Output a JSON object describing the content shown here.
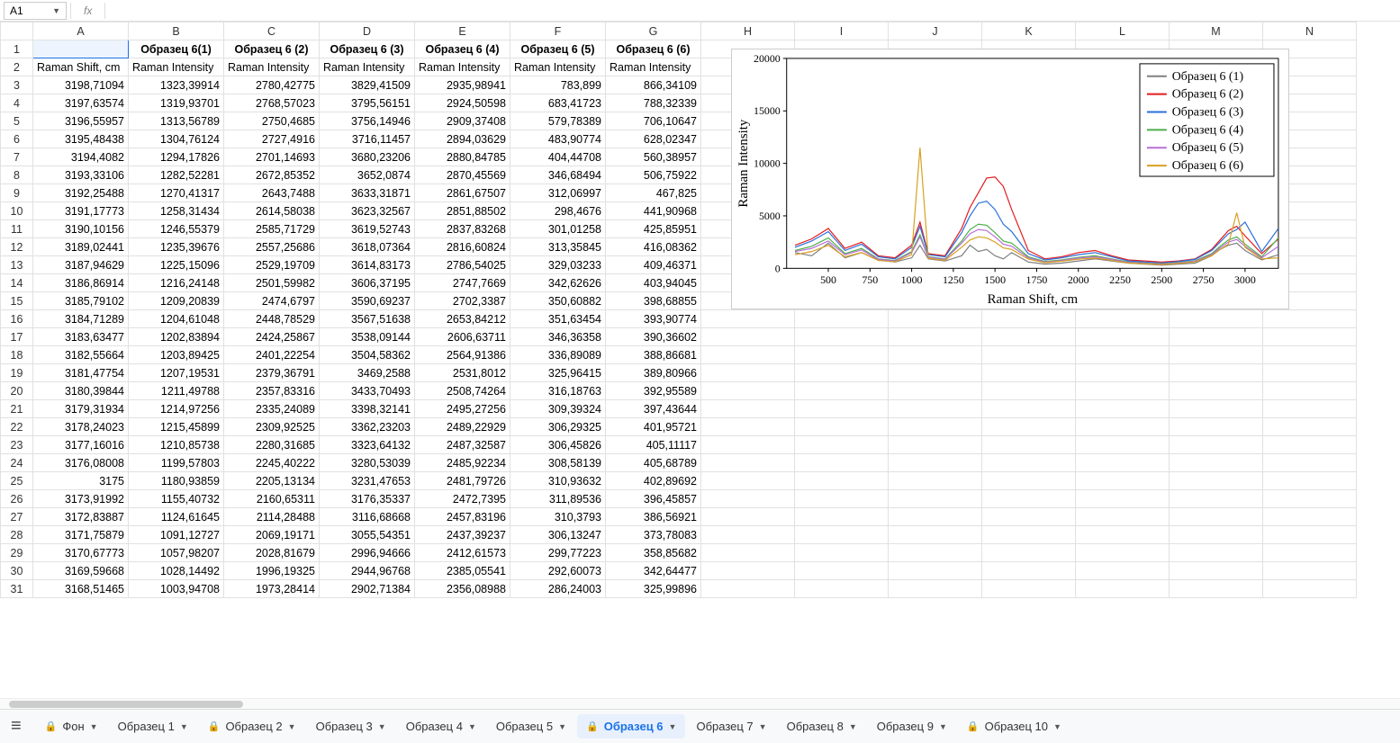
{
  "namebox": "A1",
  "fx_label": "fx",
  "columns_letters": [
    "A",
    "B",
    "C",
    "D",
    "E",
    "F",
    "G",
    "H",
    "I",
    "J",
    "K",
    "L",
    "M",
    "N"
  ],
  "header_row1": [
    "",
    "Образец 6(1)",
    "Образец 6 (2)",
    "Образец 6 (3)",
    "Образец 6 (4)",
    "Образец 6 (5)",
    "Образец 6 (6)"
  ],
  "header_row2": [
    "Raman Shift, cm",
    "Raman Intensity",
    "Raman Intensity",
    "Raman Intensity",
    "Raman Intensity",
    "Raman Intensity",
    "Raman Intensity"
  ],
  "rows": [
    [
      "3198,71094",
      "1323,39914",
      "2780,42775",
      "3829,41509",
      "2935,98941",
      "783,899",
      "866,34109"
    ],
    [
      "3197,63574",
      "1319,93701",
      "2768,57023",
      "3795,56151",
      "2924,50598",
      "683,41723",
      "788,32339"
    ],
    [
      "3196,55957",
      "1313,56789",
      "2750,4685",
      "3756,14946",
      "2909,37408",
      "579,78389",
      "706,10647"
    ],
    [
      "3195,48438",
      "1304,76124",
      "2727,4916",
      "3716,11457",
      "2894,03629",
      "483,90774",
      "628,02347"
    ],
    [
      "3194,4082",
      "1294,17826",
      "2701,14693",
      "3680,23206",
      "2880,84785",
      "404,44708",
      "560,38957"
    ],
    [
      "3193,33106",
      "1282,52281",
      "2672,85352",
      "3652,0874",
      "2870,45569",
      "346,68494",
      "506,75922"
    ],
    [
      "3192,25488",
      "1270,41317",
      "2643,7488",
      "3633,31871",
      "2861,67507",
      "312,06997",
      "467,825"
    ],
    [
      "3191,17773",
      "1258,31434",
      "2614,58038",
      "3623,32567",
      "2851,88502",
      "298,4676",
      "441,90968"
    ],
    [
      "3190,10156",
      "1246,55379",
      "2585,71729",
      "3619,52743",
      "2837,83268",
      "301,01258",
      "425,85951"
    ],
    [
      "3189,02441",
      "1235,39676",
      "2557,25686",
      "3618,07364",
      "2816,60824",
      "313,35845",
      "416,08362"
    ],
    [
      "3187,94629",
      "1225,15096",
      "2529,19709",
      "3614,83173",
      "2786,54025",
      "329,03233",
      "409,46371"
    ],
    [
      "3186,86914",
      "1216,24148",
      "2501,59982",
      "3606,37195",
      "2747,7669",
      "342,62626",
      "403,94045"
    ],
    [
      "3185,79102",
      "1209,20839",
      "2474,6797",
      "3590,69237",
      "2702,3387",
      "350,60882",
      "398,68855"
    ],
    [
      "3184,71289",
      "1204,61048",
      "2448,78529",
      "3567,51638",
      "2653,84212",
      "351,63454",
      "393,90774"
    ],
    [
      "3183,63477",
      "1202,83894",
      "2424,25867",
      "3538,09144",
      "2606,63711",
      "346,36358",
      "390,36602"
    ],
    [
      "3182,55664",
      "1203,89425",
      "2401,22254",
      "3504,58362",
      "2564,91386",
      "336,89089",
      "388,86681"
    ],
    [
      "3181,47754",
      "1207,19531",
      "2379,36791",
      "3469,2588",
      "2531,8012",
      "325,96415",
      "389,80966"
    ],
    [
      "3180,39844",
      "1211,49788",
      "2357,83316",
      "3433,70493",
      "2508,74264",
      "316,18763",
      "392,95589"
    ],
    [
      "3179,31934",
      "1214,97256",
      "2335,24089",
      "3398,32141",
      "2495,27256",
      "309,39324",
      "397,43644"
    ],
    [
      "3178,24023",
      "1215,45899",
      "2309,92525",
      "3362,23203",
      "2489,22929",
      "306,29325",
      "401,95721"
    ],
    [
      "3177,16016",
      "1210,85738",
      "2280,31685",
      "3323,64132",
      "2487,32587",
      "306,45826",
      "405,11117"
    ],
    [
      "3176,08008",
      "1199,57803",
      "2245,40222",
      "3280,53039",
      "2485,92234",
      "308,58139",
      "405,68789"
    ],
    [
      "3175",
      "1180,93859",
      "2205,13134",
      "3231,47653",
      "2481,79726",
      "310,93632",
      "402,89692"
    ],
    [
      "3173,91992",
      "1155,40732",
      "2160,65311",
      "3176,35337",
      "2472,7395",
      "311,89536",
      "396,45857"
    ],
    [
      "3172,83887",
      "1124,61645",
      "2114,28488",
      "3116,68668",
      "2457,83196",
      "310,3793",
      "386,56921"
    ],
    [
      "3171,75879",
      "1091,12727",
      "2069,19171",
      "3055,54351",
      "2437,39237",
      "306,13247",
      "373,78083"
    ],
    [
      "3170,67773",
      "1057,98207",
      "2028,81679",
      "2996,94666",
      "2412,61573",
      "299,77223",
      "358,85682"
    ],
    [
      "3169,59668",
      "1028,14492",
      "1996,19325",
      "2944,96768",
      "2385,05541",
      "292,60073",
      "342,64477"
    ],
    [
      "3168,51465",
      "1003,94708",
      "1973,28414",
      "2902,71384",
      "2356,08988",
      "286,24003",
      "325,99896"
    ]
  ],
  "chart": {
    "type": "line",
    "title": "",
    "xlabel": "Raman Shift, cm",
    "ylabel": "Raman Intensity",
    "xlabel_fontsize": 15,
    "ylabel_fontsize": 15,
    "tick_fontsize": 12,
    "xlim": [
      250,
      3200
    ],
    "ylim": [
      0,
      20000
    ],
    "xticks": [
      500,
      750,
      1000,
      1250,
      1500,
      1750,
      2000,
      2250,
      2500,
      2750,
      3000
    ],
    "yticks": [
      0,
      5000,
      10000,
      15000,
      20000
    ],
    "background_color": "#ffffff",
    "axis_color": "#000000",
    "grid": false,
    "legend_position": "top-right-inside",
    "legend_border_color": "#000000",
    "legend_fontsize": 14,
    "series": [
      {
        "label": "Образец 6 (1)",
        "color": "#808080",
        "width": 1.2
      },
      {
        "label": "Образец 6 (2)",
        "color": "#e41a1c",
        "width": 1.2
      },
      {
        "label": "Образец 6 (3)",
        "color": "#2a6fdb",
        "width": 1.2
      },
      {
        "label": "Образец 6 (4)",
        "color": "#4daf4a",
        "width": 1.2
      },
      {
        "label": "Образец 6 (5)",
        "color": "#b86fd6",
        "width": 1.2
      },
      {
        "label": "Образец 6 (6)",
        "color": "#d8a020",
        "width": 1.2
      }
    ],
    "x_sample": [
      300,
      400,
      500,
      600,
      700,
      800,
      900,
      1000,
      1050,
      1100,
      1200,
      1300,
      1350,
      1400,
      1450,
      1500,
      1550,
      1600,
      1700,
      1800,
      1900,
      2000,
      2100,
      2200,
      2300,
      2400,
      2500,
      2600,
      2700,
      2800,
      2850,
      2900,
      2950,
      3000,
      3100,
      3200
    ],
    "y_sample": {
      "s1": [
        1500,
        1200,
        2400,
        1000,
        1500,
        800,
        600,
        1000,
        2200,
        900,
        700,
        1200,
        2200,
        1600,
        1800,
        1200,
        900,
        1500,
        600,
        400,
        500,
        700,
        900,
        700,
        500,
        400,
        300,
        400,
        500,
        1200,
        1800,
        2200,
        2400,
        1700,
        800,
        1300
      ],
      "s2": [
        2200,
        2800,
        3800,
        1900,
        2500,
        1200,
        1000,
        2200,
        4400,
        1400,
        1200,
        3800,
        5800,
        7200,
        8600,
        8700,
        7800,
        5600,
        1700,
        900,
        1100,
        1500,
        1700,
        1200,
        800,
        700,
        600,
        700,
        900,
        1800,
        2700,
        3600,
        4000,
        3100,
        1400,
        2800
      ],
      "s3": [
        2000,
        2600,
        3500,
        1700,
        2300,
        1100,
        900,
        2000,
        4000,
        1300,
        1100,
        3400,
        5000,
        6200,
        6400,
        5600,
        4200,
        3500,
        1400,
        800,
        1000,
        1300,
        1500,
        1100,
        700,
        600,
        500,
        650,
        850,
        1700,
        2500,
        3300,
        3700,
        4400,
        1600,
        3800
      ],
      "s4": [
        1700,
        2100,
        2900,
        1400,
        1900,
        900,
        750,
        1600,
        3200,
        1100,
        900,
        2600,
        3700,
        4200,
        4100,
        3400,
        2600,
        2400,
        1100,
        650,
        800,
        1050,
        1200,
        900,
        600,
        500,
        430,
        550,
        720,
        1400,
        2100,
        2700,
        3000,
        2300,
        1100,
        2900
      ],
      "s5": [
        1600,
        1900,
        2600,
        1300,
        1750,
        860,
        700,
        1500,
        3000,
        1050,
        850,
        2400,
        3300,
        3700,
        3600,
        3000,
        2300,
        2100,
        1000,
        600,
        750,
        980,
        1100,
        850,
        560,
        470,
        400,
        520,
        680,
        1300,
        1950,
        2500,
        2750,
        2100,
        1000,
        2100
      ],
      "s6": [
        1300,
        1600,
        2200,
        1100,
        1500,
        750,
        620,
        1300,
        11500,
        950,
        760,
        2000,
        2700,
        3000,
        2900,
        2500,
        1950,
        1800,
        880,
        540,
        680,
        870,
        980,
        760,
        500,
        430,
        370,
        470,
        620,
        1200,
        1800,
        2300,
        5300,
        2000,
        900,
        1000
      ]
    }
  },
  "tabs": [
    {
      "label": "Фон",
      "locked": true,
      "active": false
    },
    {
      "label": "Образец 1",
      "locked": false,
      "active": false
    },
    {
      "label": "Образец 2",
      "locked": true,
      "active": false
    },
    {
      "label": "Образец 3",
      "locked": false,
      "active": false
    },
    {
      "label": "Образец 4",
      "locked": false,
      "active": false
    },
    {
      "label": "Образец 5",
      "locked": false,
      "active": false
    },
    {
      "label": "Образец 6",
      "locked": true,
      "active": true
    },
    {
      "label": "Образец 7",
      "locked": false,
      "active": false
    },
    {
      "label": "Образец 8",
      "locked": false,
      "active": false
    },
    {
      "label": "Образец 9",
      "locked": false,
      "active": false
    },
    {
      "label": "Образец 10",
      "locked": true,
      "active": false
    }
  ]
}
